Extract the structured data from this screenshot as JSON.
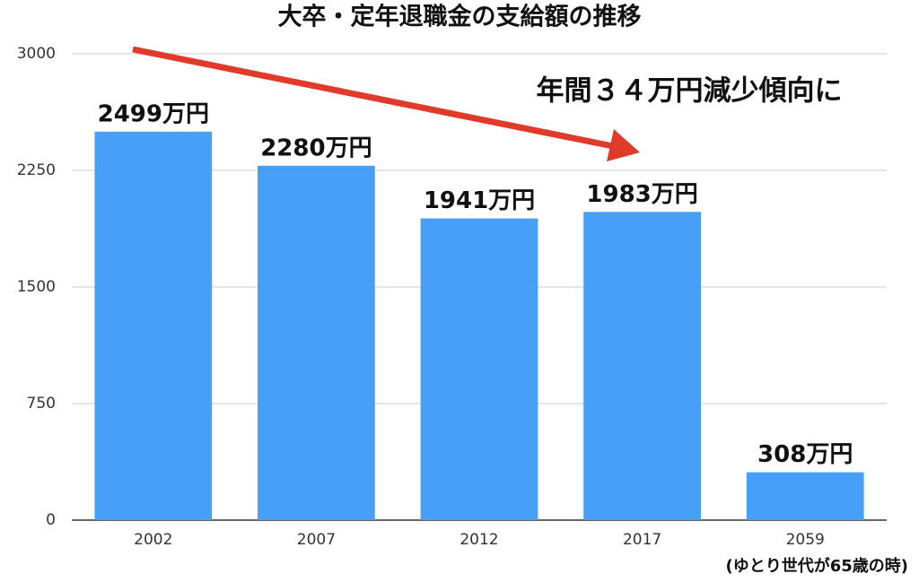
{
  "chart_data": {
    "type": "bar",
    "title": "大卒・定年退職金の支給額の推移",
    "annotation": "年間３４万円減少傾向に",
    "footnote": "(ゆとり世代が65歳の時)",
    "categories": [
      "2002",
      "2007",
      "2012",
      "2017",
      "2059"
    ],
    "values": [
      2499,
      2280,
      1941,
      1983,
      308
    ],
    "value_labels": [
      "2499万円",
      "2280万円",
      "1941万円",
      "1983万円",
      "308万円"
    ],
    "color": "#47a0f5",
    "ylim": [
      0,
      3000
    ],
    "yticks": [
      0,
      750,
      1500,
      2250,
      3000
    ],
    "grid": true
  }
}
